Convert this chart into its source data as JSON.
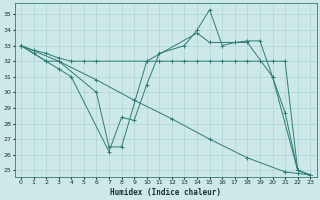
{
  "xlabel": "Humidex (Indice chaleur)",
  "background_color": "#cce8e8",
  "line_color": "#2e7d72",
  "grid_color": "#aacfcf",
  "xlim": [
    -0.5,
    23.5
  ],
  "ylim": [
    24.6,
    35.7
  ],
  "yticks": [
    25,
    26,
    27,
    28,
    29,
    30,
    31,
    32,
    33,
    34,
    35
  ],
  "xticks": [
    0,
    1,
    2,
    3,
    4,
    5,
    6,
    7,
    8,
    9,
    10,
    11,
    12,
    13,
    14,
    15,
    16,
    17,
    18,
    19,
    20,
    21,
    22,
    23
  ],
  "series": [
    {
      "x": [
        0,
        1,
        2,
        3,
        4,
        7,
        8,
        9,
        10,
        11,
        13,
        14,
        15,
        16,
        17,
        18,
        20,
        21,
        22,
        23
      ],
      "y": [
        33,
        32.5,
        32,
        31.5,
        31,
        26.2,
        28.4,
        28.2,
        30.5,
        32.5,
        33.0,
        34.0,
        35.3,
        33.0,
        33.2,
        33.2,
        31.0,
        28.7,
        25.0,
        24.7
      ]
    },
    {
      "x": [
        0,
        1,
        2,
        3,
        4,
        5,
        6,
        10,
        11,
        12,
        13,
        14,
        15,
        16,
        17,
        18,
        19,
        20,
        21,
        22,
        23
      ],
      "y": [
        33,
        32.7,
        32.5,
        32.2,
        32.0,
        32.0,
        32.0,
        32.0,
        32.0,
        32.0,
        32.0,
        32.0,
        32.0,
        32.0,
        32.0,
        32.0,
        32.0,
        32.0,
        32.0,
        25.0,
        24.7
      ]
    },
    {
      "x": [
        0,
        3,
        6,
        9,
        12,
        15,
        18,
        21,
        22,
        23
      ],
      "y": [
        33,
        32.0,
        30.8,
        29.5,
        28.3,
        27.0,
        25.8,
        24.9,
        24.8,
        24.7
      ]
    },
    {
      "x": [
        0,
        2,
        3,
        6,
        7,
        8,
        10,
        14,
        15,
        17,
        18,
        19,
        20,
        22,
        23
      ],
      "y": [
        33,
        32,
        32,
        30.0,
        26.5,
        26.5,
        32.0,
        33.8,
        33.2,
        33.2,
        33.3,
        33.3,
        31.0,
        25.0,
        24.7
      ]
    }
  ]
}
